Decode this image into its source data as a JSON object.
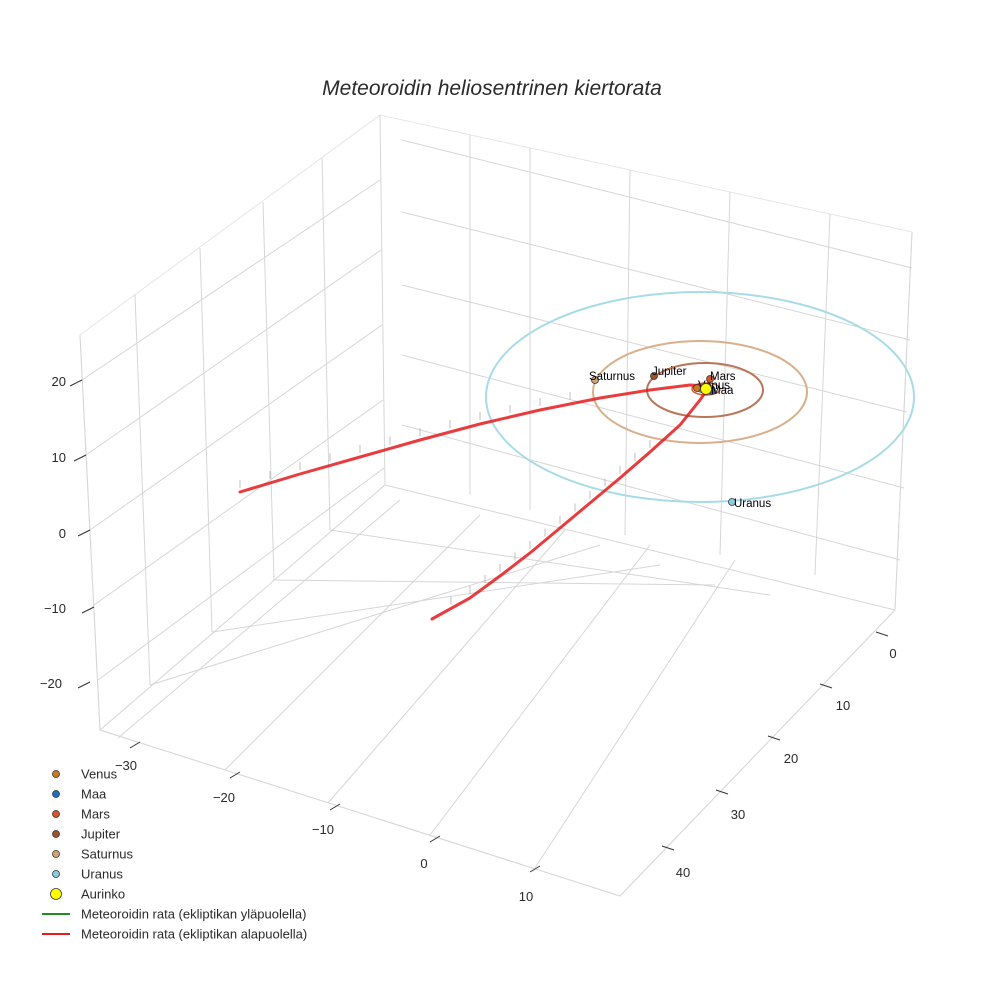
{
  "chart_data": {
    "type": "scatter3d",
    "title": "Meteoroidin heliosentrinen kiertorata",
    "axes": {
      "x": {
        "ticks": [
          -30,
          -20,
          -10,
          0,
          10
        ],
        "tick_labels": [
          "−30",
          "−20",
          "−10",
          "0",
          "10"
        ]
      },
      "y": {
        "ticks": [
          0,
          10,
          20,
          30,
          40
        ],
        "tick_labels": [
          "0",
          "10",
          "20",
          "30",
          "40"
        ]
      },
      "z": {
        "ticks": [
          -20,
          -10,
          0,
          10,
          20
        ],
        "tick_labels": [
          "−20",
          "−10",
          "0",
          "10",
          "20"
        ]
      }
    },
    "grid": true,
    "legend_position": "bottom-left",
    "sun": {
      "name": "Aurinko",
      "color": "#ffff00"
    },
    "planets": [
      {
        "name": "Venus",
        "color": "#cc7a1f",
        "label": "Venus"
      },
      {
        "name": "Maa",
        "color": "#1f6fc0",
        "label": "Maa"
      },
      {
        "name": "Mars",
        "color": "#d9542b",
        "label": "Mars"
      },
      {
        "name": "Jupiter",
        "color": "#a0522d",
        "label": "Jupiter"
      },
      {
        "name": "Saturnus",
        "color": "#d4a373",
        "label": "Saturnus"
      },
      {
        "name": "Uranus",
        "color": "#87cee0",
        "label": "Uranus"
      }
    ],
    "orbit_colors": {
      "Jupiter": "#b9765a",
      "Saturnus": "#d9b08c",
      "Uranus": "#a8dbe8"
    },
    "series": [
      {
        "name": "Meteoroidin rata (ekliptikan yläpuolella)",
        "color": "#228b22"
      },
      {
        "name": "Meteoroidin rata (ekliptikan alapuolella)",
        "color": "#e41a1c"
      }
    ]
  },
  "legend": {
    "items": [
      {
        "label": "Venus",
        "kind": "dot",
        "color": "#cc7a1f"
      },
      {
        "label": "Maa",
        "kind": "dot",
        "color": "#1f6fc0"
      },
      {
        "label": "Mars",
        "kind": "dot",
        "color": "#d9542b"
      },
      {
        "label": "Jupiter",
        "kind": "dot",
        "color": "#a0522d"
      },
      {
        "label": "Saturnus",
        "kind": "dot",
        "color": "#d4a373"
      },
      {
        "label": "Uranus",
        "kind": "dot",
        "color": "#87cee0"
      },
      {
        "label": "Aurinko",
        "kind": "bigdot",
        "color": "#ffff00"
      },
      {
        "label": "Meteoroidin rata (ekliptikan yläpuolella)",
        "kind": "line",
        "color": "#228b22"
      },
      {
        "label": "Meteoroidin rata (ekliptikan alapuolella)",
        "kind": "line",
        "color": "#e41a1c"
      }
    ]
  }
}
